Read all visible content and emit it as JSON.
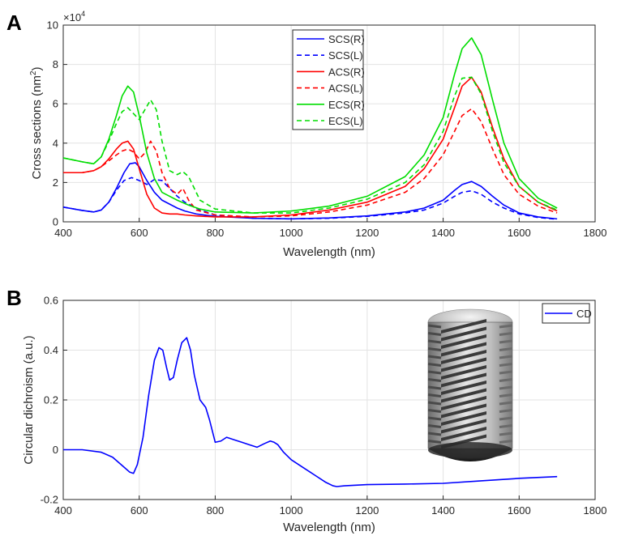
{
  "chart_data": [
    {
      "type": "line",
      "panel_label": "A",
      "xlabel": "Wavelength (nm)",
      "ylabel": "Cross sections (nm",
      "ylabel_sup": "2",
      "ylabel_close": ")",
      "y_exponent_base": "×10",
      "y_exponent_power": "4",
      "xlim": [
        400,
        1800
      ],
      "ylim": [
        0,
        10
      ],
      "xticks": [
        400,
        600,
        800,
        1000,
        1200,
        1400,
        1600,
        1800
      ],
      "yticks": [
        0,
        2,
        4,
        6,
        8,
        10
      ],
      "grid": true,
      "legend_position": "top-center",
      "series": [
        {
          "name": "SCS(R)",
          "color": "#0000ff",
          "dash": false,
          "x": [
            400,
            450,
            480,
            500,
            520,
            540,
            560,
            575,
            590,
            600,
            620,
            640,
            660,
            680,
            700,
            720,
            750,
            800,
            900,
            1000,
            1100,
            1200,
            1300,
            1350,
            1400,
            1430,
            1450,
            1475,
            1500,
            1530,
            1560,
            1600,
            1650,
            1700
          ],
          "y": [
            0.75,
            0.58,
            0.5,
            0.6,
            1.0,
            1.7,
            2.5,
            2.95,
            3.0,
            2.8,
            2.1,
            1.5,
            1.1,
            0.9,
            0.7,
            0.55,
            0.4,
            0.28,
            0.18,
            0.15,
            0.2,
            0.3,
            0.5,
            0.7,
            1.1,
            1.6,
            1.9,
            2.05,
            1.8,
            1.3,
            0.85,
            0.45,
            0.25,
            0.15
          ]
        },
        {
          "name": "SCS(L)",
          "color": "#0000ff",
          "dash": true,
          "x": [
            400,
            450,
            480,
            500,
            520,
            540,
            560,
            580,
            600,
            620,
            640,
            660,
            680,
            700,
            720,
            740,
            760,
            800,
            900,
            1000,
            1100,
            1200,
            1300,
            1350,
            1400,
            1430,
            1450,
            1475,
            1500,
            1530,
            1560,
            1600,
            1650,
            1700
          ],
          "y": [
            0.75,
            0.58,
            0.5,
            0.6,
            1.0,
            1.6,
            2.1,
            2.25,
            2.1,
            1.9,
            2.15,
            2.1,
            1.7,
            1.3,
            1.0,
            0.8,
            0.6,
            0.35,
            0.18,
            0.15,
            0.18,
            0.28,
            0.45,
            0.6,
            0.95,
            1.3,
            1.5,
            1.58,
            1.4,
            1.0,
            0.7,
            0.4,
            0.22,
            0.13
          ]
        },
        {
          "name": "ACS(R)",
          "color": "#ff0000",
          "dash": false,
          "x": [
            400,
            450,
            480,
            500,
            520,
            540,
            555,
            570,
            585,
            600,
            620,
            640,
            660,
            680,
            700,
            720,
            750,
            800,
            900,
            1000,
            1100,
            1200,
            1300,
            1350,
            1400,
            1430,
            1450,
            1475,
            1500,
            1530,
            1560,
            1600,
            1650,
            1700
          ],
          "y": [
            2.5,
            2.5,
            2.6,
            2.8,
            3.2,
            3.7,
            4.0,
            4.1,
            3.7,
            2.7,
            1.4,
            0.7,
            0.45,
            0.4,
            0.4,
            0.35,
            0.3,
            0.25,
            0.25,
            0.35,
            0.6,
            1.0,
            1.8,
            2.7,
            4.2,
            5.8,
            6.9,
            7.35,
            6.6,
            4.8,
            3.2,
            1.8,
            1.0,
            0.55
          ]
        },
        {
          "name": "ACS(L)",
          "color": "#ff0000",
          "dash": true,
          "x": [
            400,
            450,
            480,
            500,
            520,
            540,
            555,
            570,
            585,
            600,
            615,
            630,
            645,
            660,
            680,
            700,
            715,
            730,
            750,
            800,
            900,
            1000,
            1100,
            1200,
            1300,
            1350,
            1400,
            1430,
            1450,
            1475,
            1500,
            1530,
            1560,
            1600,
            1650,
            1700
          ],
          "y": [
            2.5,
            2.5,
            2.6,
            2.8,
            3.1,
            3.4,
            3.6,
            3.7,
            3.55,
            3.2,
            3.5,
            4.1,
            3.6,
            2.5,
            1.7,
            1.4,
            1.7,
            1.1,
            0.6,
            0.35,
            0.25,
            0.3,
            0.5,
            0.85,
            1.5,
            2.2,
            3.4,
            4.6,
            5.4,
            5.75,
            5.1,
            3.7,
            2.4,
            1.4,
            0.8,
            0.45
          ]
        },
        {
          "name": "ECS(R)",
          "color": "#00dd00",
          "dash": false,
          "x": [
            400,
            450,
            480,
            500,
            520,
            540,
            555,
            570,
            585,
            600,
            620,
            640,
            660,
            680,
            700,
            730,
            760,
            800,
            900,
            1000,
            1100,
            1200,
            1300,
            1350,
            1400,
            1430,
            1450,
            1475,
            1500,
            1530,
            1560,
            1600,
            1650,
            1700
          ],
          "y": [
            3.25,
            3.05,
            2.95,
            3.3,
            4.2,
            5.4,
            6.4,
            6.9,
            6.6,
            5.4,
            3.5,
            2.2,
            1.5,
            1.3,
            1.1,
            0.85,
            0.65,
            0.5,
            0.45,
            0.55,
            0.8,
            1.3,
            2.3,
            3.4,
            5.3,
            7.5,
            8.8,
            9.35,
            8.5,
            6.2,
            4.0,
            2.2,
            1.2,
            0.7
          ]
        },
        {
          "name": "ECS(L)",
          "color": "#00dd00",
          "dash": true,
          "x": [
            400,
            450,
            480,
            500,
            520,
            540,
            555,
            570,
            585,
            600,
            615,
            630,
            645,
            660,
            680,
            700,
            715,
            730,
            760,
            800,
            900,
            1000,
            1100,
            1200,
            1300,
            1350,
            1400,
            1430,
            1450,
            1475,
            1500,
            1530,
            1560,
            1600,
            1650,
            1700
          ],
          "y": [
            3.25,
            3.05,
            2.95,
            3.3,
            4.1,
            5.0,
            5.6,
            5.8,
            5.5,
            5.2,
            5.7,
            6.2,
            5.7,
            4.1,
            2.6,
            2.4,
            2.55,
            2.3,
            1.1,
            0.65,
            0.45,
            0.45,
            0.7,
            1.15,
            2.0,
            2.9,
            4.6,
            6.4,
            7.3,
            7.35,
            6.5,
            4.6,
            3.0,
            1.8,
            1.0,
            0.6
          ]
        }
      ]
    },
    {
      "type": "line",
      "panel_label": "B",
      "xlabel": "Wavelength (nm)",
      "ylabel": "Circular dichroism (a.u.)",
      "xlim": [
        400,
        1800
      ],
      "ylim": [
        -0.2,
        0.6
      ],
      "xticks": [
        400,
        600,
        800,
        1000,
        1200,
        1400,
        1600,
        1800
      ],
      "yticks": [
        -0.2,
        0,
        0.2,
        0.4,
        0.6
      ],
      "grid": true,
      "legend_position": "top-right",
      "series": [
        {
          "name": "CD",
          "color": "#0000ff",
          "dash": false,
          "x": [
            400,
            450,
            500,
            530,
            560,
            575,
            585,
            595,
            610,
            625,
            640,
            652,
            662,
            672,
            680,
            690,
            700,
            712,
            725,
            735,
            745,
            760,
            775,
            785,
            800,
            815,
            830,
            850,
            870,
            890,
            910,
            930,
            945,
            955,
            965,
            980,
            1000,
            1030,
            1060,
            1090,
            1110,
            1120,
            1140,
            1200,
            1300,
            1400,
            1500,
            1600,
            1700
          ],
          "y": [
            0.0,
            0.0,
            -0.01,
            -0.03,
            -0.07,
            -0.09,
            -0.095,
            -0.06,
            0.05,
            0.22,
            0.36,
            0.41,
            0.4,
            0.33,
            0.28,
            0.29,
            0.36,
            0.43,
            0.45,
            0.4,
            0.3,
            0.2,
            0.17,
            0.12,
            0.03,
            0.035,
            0.05,
            0.04,
            0.03,
            0.02,
            0.01,
            0.025,
            0.035,
            0.03,
            0.02,
            -0.01,
            -0.04,
            -0.07,
            -0.1,
            -0.13,
            -0.145,
            -0.148,
            -0.145,
            -0.14,
            -0.138,
            -0.135,
            -0.125,
            -0.115,
            -0.108
          ]
        }
      ]
    }
  ]
}
